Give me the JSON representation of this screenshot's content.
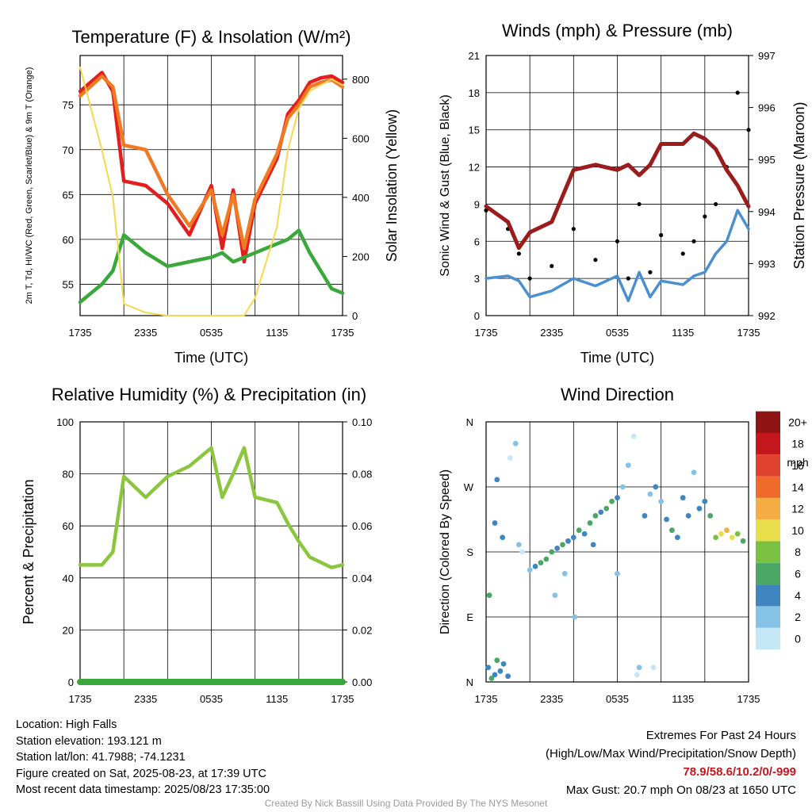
{
  "chart_data": [
    {
      "type": "line",
      "title": "Temperature (F) & Insolation (W/m²)",
      "xlabel": "Time (UTC)",
      "ylabel_left": "2m T, Td, HI/WC (Red, Green, Scarlet/Blue) & 9m T (Orange)",
      "ylabel_right": "Solar Insolation (Yellow)",
      "x_ticks": [
        "1735",
        "2335",
        "0535",
        "1135",
        "1735"
      ],
      "ylim": [
        51.5,
        80.5
      ],
      "y_ticks": [
        55,
        60,
        65,
        70,
        75
      ],
      "y2lim": [
        0,
        880
      ],
      "y2_ticks": [
        0,
        200,
        400,
        600,
        800
      ],
      "x_hours": [
        0,
        2,
        3,
        4,
        6,
        8,
        10,
        12,
        13,
        14,
        15,
        16,
        18,
        19,
        20,
        21,
        22,
        23,
        24
      ],
      "series": [
        {
          "name": "2m T",
          "color": "#e31e1e",
          "axis": "left",
          "values": [
            76.5,
            78.6,
            76.5,
            66.5,
            66.0,
            64.0,
            60.5,
            66.0,
            59.0,
            65.5,
            57.5,
            64.0,
            69.0,
            74.0,
            75.5,
            77.5,
            78.0,
            78.2,
            77.5
          ]
        },
        {
          "name": "9m T",
          "color": "#f07a24",
          "axis": "left",
          "values": [
            76.0,
            78.2,
            77.0,
            70.5,
            70.0,
            65.0,
            61.5,
            65.5,
            60.5,
            65.0,
            59.0,
            64.5,
            69.5,
            73.5,
            75.0,
            77.0,
            77.5,
            77.8,
            77.0
          ]
        },
        {
          "name": "Td",
          "color": "#3aa83a",
          "axis": "left",
          "values": [
            53.0,
            55.0,
            56.5,
            60.5,
            58.5,
            57.0,
            57.5,
            58.0,
            58.5,
            57.5,
            58.0,
            58.5,
            59.5,
            60.0,
            61.0,
            58.5,
            56.5,
            54.5,
            54.0
          ]
        },
        {
          "name": "Solar Insolation",
          "color": "#f7d74f",
          "axis": "right",
          "values": [
            840,
            560,
            400,
            40,
            10,
            0,
            0,
            0,
            0,
            0,
            0,
            60,
            300,
            560,
            700,
            760,
            780,
            800,
            780
          ]
        }
      ]
    },
    {
      "type": "line",
      "title": "Winds (mph) & Pressure (mb)",
      "xlabel": "Time (UTC)",
      "ylabel_left": "Sonic Wind & Gust (Blue, Black)",
      "ylabel_right": "Station Pressure (Maroon)",
      "x_ticks": [
        "1735",
        "2335",
        "0535",
        "1135",
        "1735"
      ],
      "ylim": [
        0,
        21
      ],
      "y_ticks": [
        0,
        3,
        6,
        9,
        12,
        15,
        18,
        21
      ],
      "y2lim": [
        992,
        997
      ],
      "y2_ticks": [
        992,
        993,
        994,
        995,
        996,
        997
      ],
      "x_hours": [
        0,
        2,
        3,
        4,
        6,
        8,
        10,
        12,
        13,
        14,
        15,
        16,
        18,
        19,
        20,
        21,
        22,
        23,
        24
      ],
      "series": [
        {
          "name": "Sonic Wind",
          "color": "#4a90d0",
          "axis": "left",
          "values": [
            3.0,
            3.2,
            2.8,
            1.5,
            2.0,
            3.0,
            2.4,
            3.2,
            1.2,
            3.5,
            1.5,
            2.8,
            2.5,
            3.2,
            3.5,
            5.0,
            6.0,
            8.5,
            7.0
          ]
        },
        {
          "name": "Gust",
          "color": "#000000",
          "axis": "left",
          "values": [
            8.5,
            7.0,
            5.0,
            3.0,
            4.0,
            7.0,
            4.5,
            6.0,
            3.0,
            9.0,
            3.5,
            6.5,
            5.0,
            6.0,
            8.0,
            9.0,
            12.0,
            18.0,
            15.0
          ]
        },
        {
          "name": "Station Pressure",
          "color": "#9b1c1c",
          "axis": "right",
          "values": [
            994.1,
            993.8,
            993.3,
            993.6,
            993.8,
            994.8,
            994.9,
            994.8,
            994.9,
            994.7,
            994.9,
            995.3,
            995.3,
            995.5,
            995.4,
            995.2,
            994.8,
            994.5,
            994.1
          ]
        }
      ]
    },
    {
      "type": "line",
      "title": "Relative Humidity (%) & Precipitation (in)",
      "xlabel": "",
      "ylabel_left": "Percent & Precipitation",
      "x_ticks": [
        "1735",
        "2335",
        "0535",
        "1135",
        "1735"
      ],
      "ylim": [
        0,
        100
      ],
      "y_ticks": [
        0,
        20,
        40,
        60,
        80,
        100
      ],
      "y2lim": [
        0,
        0.1
      ],
      "y2_ticks": [
        "0.00",
        "0.02",
        "0.04",
        "0.06",
        "0.08",
        "0.10"
      ],
      "x_hours": [
        0,
        2,
        3,
        4,
        6,
        8,
        10,
        12,
        13,
        14,
        15,
        16,
        18,
        19,
        20,
        21,
        22,
        23,
        24
      ],
      "series": [
        {
          "name": "Relative Humidity",
          "color": "#8cc63f",
          "axis": "left",
          "values": [
            45,
            45,
            50,
            79,
            71,
            79,
            83,
            90,
            71,
            80,
            90,
            71,
            69,
            61,
            54,
            48,
            46,
            44,
            45
          ]
        },
        {
          "name": "Precipitation",
          "color": "#3aa83a",
          "axis": "right",
          "values": [
            0,
            0,
            0,
            0,
            0,
            0,
            0,
            0,
            0,
            0,
            0,
            0,
            0,
            0,
            0,
            0,
            0,
            0,
            0
          ]
        }
      ]
    },
    {
      "type": "scatter",
      "title": "Wind Direction",
      "xlabel": "",
      "ylabel": "Direction (Colored By Speed)",
      "x_ticks": [
        "1735",
        "2335",
        "0535",
        "1135",
        "1735"
      ],
      "y_ticks": [
        "N",
        "E",
        "S",
        "W",
        "N"
      ],
      "ylim": [
        0,
        360
      ],
      "legend_title": "mph",
      "legend_labels": [
        "0",
        "2",
        "4",
        "6",
        "8",
        "10",
        "12",
        "14",
        "16",
        "18",
        "20+"
      ],
      "legend_colors": [
        "#c6e7f6",
        "#86c1e6",
        "#3f86c0",
        "#4aa766",
        "#7ac142",
        "#e8de4c",
        "#f7ad45",
        "#f06b2b",
        "#e04230",
        "#c4171d",
        "#8f1414"
      ],
      "points": [
        [
          0.2,
          20,
          2
        ],
        [
          0.5,
          5,
          3
        ],
        [
          0.8,
          10,
          2
        ],
        [
          1.0,
          30,
          3
        ],
        [
          1.3,
          15,
          2
        ],
        [
          1.6,
          25,
          2
        ],
        [
          2.0,
          8,
          2
        ],
        [
          0.3,
          120,
          3
        ],
        [
          0.8,
          220,
          2
        ],
        [
          1.0,
          280,
          2
        ],
        [
          1.5,
          200,
          2
        ],
        [
          2.2,
          310,
          0
        ],
        [
          2.7,
          330,
          1
        ],
        [
          3.0,
          190,
          1
        ],
        [
          3.3,
          180,
          0
        ],
        [
          4.0,
          155,
          1
        ],
        [
          4.5,
          160,
          2
        ],
        [
          5.0,
          165,
          3
        ],
        [
          5.5,
          170,
          3
        ],
        [
          6.0,
          180,
          3
        ],
        [
          6.5,
          185,
          2
        ],
        [
          7.0,
          190,
          3
        ],
        [
          7.5,
          195,
          2
        ],
        [
          8.0,
          200,
          2
        ],
        [
          8.5,
          210,
          3
        ],
        [
          9.0,
          205,
          2
        ],
        [
          9.5,
          220,
          3
        ],
        [
          10.0,
          230,
          3
        ],
        [
          10.5,
          235,
          2
        ],
        [
          11.0,
          240,
          3
        ],
        [
          11.5,
          250,
          3
        ],
        [
          12.0,
          255,
          2
        ],
        [
          12.5,
          270,
          1
        ],
        [
          13.0,
          300,
          1
        ],
        [
          13.5,
          340,
          0
        ],
        [
          13.8,
          10,
          0
        ],
        [
          14.0,
          20,
          1
        ],
        [
          14.5,
          230,
          2
        ],
        [
          15.0,
          260,
          1
        ],
        [
          15.5,
          270,
          2
        ],
        [
          16.0,
          250,
          1
        ],
        [
          16.5,
          225,
          2
        ],
        [
          17.0,
          210,
          3
        ],
        [
          17.5,
          200,
          2
        ],
        [
          18.0,
          255,
          2
        ],
        [
          18.5,
          230,
          2
        ],
        [
          19.0,
          290,
          1
        ],
        [
          19.5,
          240,
          2
        ],
        [
          20.0,
          250,
          2
        ],
        [
          20.5,
          230,
          3
        ],
        [
          21.0,
          200,
          4
        ],
        [
          21.5,
          205,
          5
        ],
        [
          22.0,
          210,
          6
        ],
        [
          22.5,
          200,
          5
        ],
        [
          23.0,
          205,
          4
        ],
        [
          23.5,
          195,
          3
        ],
        [
          7.2,
          150,
          1
        ],
        [
          9.8,
          190,
          2
        ],
        [
          12.0,
          150,
          1
        ],
        [
          15.3,
          20,
          0
        ],
        [
          8.1,
          90,
          1
        ],
        [
          6.3,
          120,
          1
        ]
      ]
    }
  ],
  "footer": {
    "location": "Location: High Falls",
    "elevation": "Station elevation: 193.121 m",
    "latlon": "Station lat/lon: 41.7988; -74.1231",
    "created": "Figure created on Sat, 2025-08-23, at 17:39 UTC",
    "recent": "Most recent data timestamp: 2025/08/23 17:35:00",
    "extremes_title": "Extremes For Past 24 Hours",
    "extremes_sub": "(High/Low/Max Wind/Precipitation/Snow Depth)",
    "extremes_values": "78.9/58.6/10.2/0/-999",
    "max_gust": "Max Gust: 20.7 mph On 08/23 at 1650 UTC",
    "credit": "Created By Nick Bassill Using Data Provided By The NYS Mesonet"
  }
}
